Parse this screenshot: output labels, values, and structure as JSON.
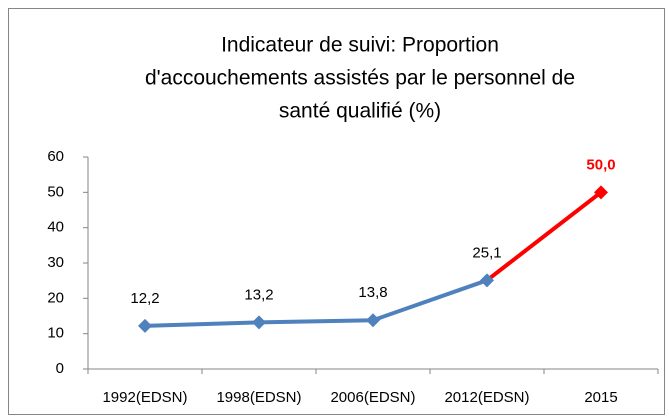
{
  "chart_data": {
    "type": "line",
    "title": [
      "Indicateur de suivi: Proportion",
      "d'accouchements assistés par le personnel de",
      "santé qualifié (%)"
    ],
    "categories": [
      "1992(EDSN)",
      "1998(EDSN)",
      "2006(EDSN)",
      "2012(EDSN)",
      "2015"
    ],
    "series": [
      {
        "color": "#ff0000",
        "values": [
          null,
          null,
          null,
          25.1,
          50.0
        ],
        "value_labels": [
          null,
          null,
          null,
          null,
          "50,0"
        ],
        "label_color": "#ff0000",
        "label_bold": true
      },
      {
        "color": "#4f81bd",
        "values": [
          12.2,
          13.2,
          13.8,
          25.1,
          null
        ],
        "value_labels": [
          "12,2",
          "13,2",
          "13,8",
          "25,1",
          null
        ],
        "label_color": "#000000",
        "label_bold": false
      }
    ],
    "ylim": [
      0,
      60
    ],
    "yticks": [
      0,
      10,
      20,
      30,
      40,
      50,
      60
    ],
    "grid": false
  }
}
